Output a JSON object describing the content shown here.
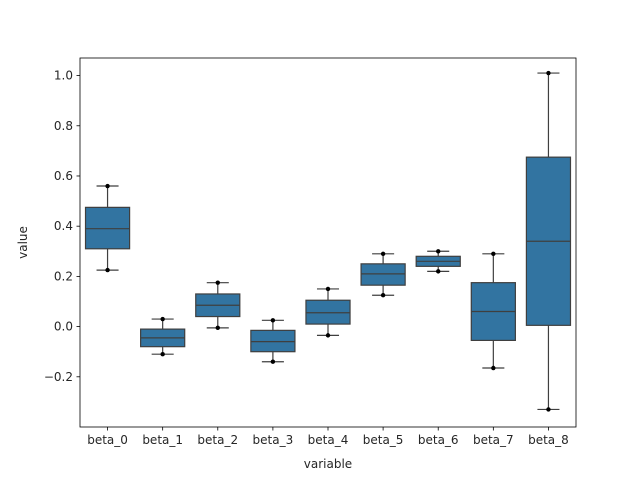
{
  "chart_data": {
    "type": "box",
    "xlabel": "variable",
    "ylabel": "value",
    "categories": [
      "beta_0",
      "beta_1",
      "beta_2",
      "beta_3",
      "beta_4",
      "beta_5",
      "beta_6",
      "beta_7",
      "beta_8"
    ],
    "boxes": [
      {
        "category": "beta_0",
        "whisker_low": 0.225,
        "q1": 0.31,
        "median": 0.39,
        "q3": 0.475,
        "whisker_high": 0.56
      },
      {
        "category": "beta_1",
        "whisker_low": -0.11,
        "q1": -0.08,
        "median": -0.045,
        "q3": -0.01,
        "whisker_high": 0.03
      },
      {
        "category": "beta_2",
        "whisker_low": -0.005,
        "q1": 0.04,
        "median": 0.085,
        "q3": 0.13,
        "whisker_high": 0.175
      },
      {
        "category": "beta_3",
        "whisker_low": -0.14,
        "q1": -0.1,
        "median": -0.06,
        "q3": -0.015,
        "whisker_high": 0.025
      },
      {
        "category": "beta_4",
        "whisker_low": -0.035,
        "q1": 0.01,
        "median": 0.055,
        "q3": 0.105,
        "whisker_high": 0.15
      },
      {
        "category": "beta_5",
        "whisker_low": 0.125,
        "q1": 0.165,
        "median": 0.21,
        "q3": 0.25,
        "whisker_high": 0.29
      },
      {
        "category": "beta_6",
        "whisker_low": 0.22,
        "q1": 0.24,
        "median": 0.26,
        "q3": 0.28,
        "whisker_high": 0.3
      },
      {
        "category": "beta_7",
        "whisker_low": -0.165,
        "q1": -0.055,
        "median": 0.06,
        "q3": 0.175,
        "whisker_high": 0.29
      },
      {
        "category": "beta_8",
        "whisker_low": -0.33,
        "q1": 0.005,
        "median": 0.34,
        "q3": 0.675,
        "whisker_high": 1.01
      }
    ],
    "points": [
      {
        "category": "beta_0",
        "values": [
          0.225,
          0.56
        ]
      },
      {
        "category": "beta_1",
        "values": [
          -0.11,
          0.03
        ]
      },
      {
        "category": "beta_2",
        "values": [
          -0.005,
          0.175
        ]
      },
      {
        "category": "beta_3",
        "values": [
          -0.14,
          0.025
        ]
      },
      {
        "category": "beta_4",
        "values": [
          -0.035,
          0.15
        ]
      },
      {
        "category": "beta_5",
        "values": [
          0.125,
          0.29
        ]
      },
      {
        "category": "beta_6",
        "values": [
          0.22,
          0.3
        ]
      },
      {
        "category": "beta_7",
        "values": [
          -0.165,
          0.29
        ]
      },
      {
        "category": "beta_8",
        "values": [
          -0.33,
          1.01
        ]
      }
    ],
    "yticks": [
      -0.2,
      0.0,
      0.2,
      0.4,
      0.6,
      0.8,
      1.0
    ],
    "ytick_labels": [
      "−0.2",
      "0.0",
      "0.2",
      "0.4",
      "0.6",
      "0.8",
      "1.0"
    ],
    "ylim": [
      -0.4,
      1.07
    ],
    "grid": false,
    "colors": {
      "box_fill": "#3274a1",
      "line": "#3f3f3f",
      "point": "#000000"
    }
  }
}
